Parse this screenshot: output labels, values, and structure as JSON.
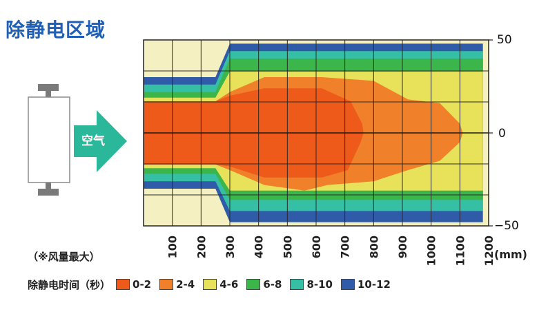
{
  "title": "除静电区域",
  "device": {
    "label": "空气"
  },
  "note": "（※风量最大）",
  "unit": "(mm)",
  "colors": {
    "title": "#1f5fb5",
    "arrow": "#2bb89a",
    "device_gray": "#7a7a7a"
  },
  "chart_data": {
    "type": "heatmap",
    "x_ticks": [
      "100",
      "200",
      "300",
      "400",
      "500",
      "600",
      "700",
      "800",
      "900",
      "1000",
      "1100",
      "1200"
    ],
    "xlim": [
      0,
      1200
    ],
    "y_ticks": [
      "50",
      "0",
      "−50"
    ],
    "ylim": [
      -50,
      50
    ],
    "legend_title": "除静电时间（秒）",
    "legend": [
      {
        "label": "0-2",
        "color": "#ee5a1a"
      },
      {
        "label": "2-4",
        "color": "#f0802a"
      },
      {
        "label": "4-6",
        "color": "#e8e25a"
      },
      {
        "label": "6-8",
        "color": "#3cb54a"
      },
      {
        "label": "8-10",
        "color": "#35c0a6"
      },
      {
        "label": "10-12",
        "color": "#2f5ba8"
      }
    ],
    "background_color": "#f4f0c2",
    "zones": [
      {
        "range": "10-12",
        "points": [
          [
            300,
            48
          ],
          [
            1180,
            48
          ],
          [
            1180,
            -48
          ],
          [
            300,
            -48
          ],
          [
            250,
            -30
          ],
          [
            0,
            -30
          ],
          [
            0,
            30
          ],
          [
            250,
            30
          ]
        ]
      },
      {
        "range": "8-10",
        "points": [
          [
            300,
            44
          ],
          [
            1180,
            44
          ],
          [
            1180,
            -42
          ],
          [
            300,
            -42
          ],
          [
            250,
            -26
          ],
          [
            0,
            -26
          ],
          [
            0,
            26
          ],
          [
            250,
            26
          ]
        ]
      },
      {
        "range": "6-8",
        "points": [
          [
            300,
            40
          ],
          [
            1180,
            40
          ],
          [
            1180,
            -36
          ],
          [
            300,
            -36
          ],
          [
            250,
            -22
          ],
          [
            0,
            -22
          ],
          [
            0,
            22
          ],
          [
            250,
            22
          ]
        ]
      },
      {
        "range": "4-6",
        "points": [
          [
            300,
            33
          ],
          [
            1180,
            33
          ],
          [
            1180,
            -31
          ],
          [
            300,
            -31
          ],
          [
            250,
            -19
          ],
          [
            0,
            -19
          ],
          [
            0,
            19
          ],
          [
            250,
            19
          ]
        ]
      },
      {
        "range": "2-4",
        "points": [
          [
            0,
            17
          ],
          [
            250,
            17
          ],
          [
            300,
            22
          ],
          [
            420,
            30
          ],
          [
            620,
            30
          ],
          [
            800,
            28
          ],
          [
            920,
            18
          ],
          [
            1030,
            16
          ],
          [
            1100,
            5
          ],
          [
            1110,
            0
          ],
          [
            1100,
            -5
          ],
          [
            1030,
            -15
          ],
          [
            920,
            -20
          ],
          [
            800,
            -26
          ],
          [
            640,
            -28
          ],
          [
            560,
            -31
          ],
          [
            420,
            -28
          ],
          [
            300,
            -20
          ],
          [
            250,
            -17
          ],
          [
            0,
            -17
          ]
        ]
      },
      {
        "range": "0-2",
        "points": [
          [
            0,
            17
          ],
          [
            250,
            17
          ],
          [
            300,
            20
          ],
          [
            420,
            24
          ],
          [
            620,
            24
          ],
          [
            720,
            17
          ],
          [
            760,
            5
          ],
          [
            765,
            0
          ],
          [
            755,
            -5
          ],
          [
            710,
            -20
          ],
          [
            620,
            -24
          ],
          [
            420,
            -24
          ],
          [
            300,
            -18
          ],
          [
            250,
            -17
          ],
          [
            0,
            -17
          ]
        ]
      }
    ]
  }
}
